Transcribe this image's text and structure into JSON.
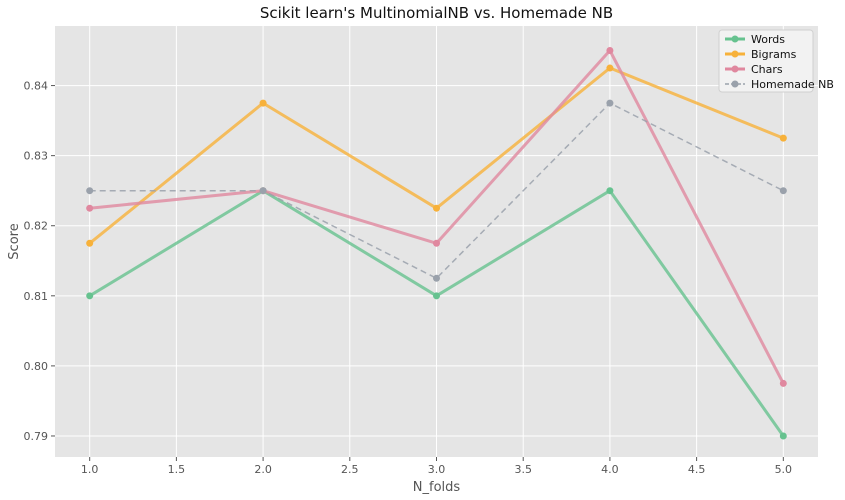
{
  "chart_data": {
    "type": "line",
    "title": "Scikit learn's MultinomialNB vs. Homemade NB",
    "xlabel": "N_folds",
    "ylabel": "Score",
    "x": [
      1.0,
      2.0,
      3.0,
      4.0,
      5.0
    ],
    "xlim": [
      0.8,
      5.2
    ],
    "ylim": [
      0.787,
      0.8485
    ],
    "xticks": [
      1.0,
      1.5,
      2.0,
      2.5,
      3.0,
      3.5,
      4.0,
      4.5,
      5.0
    ],
    "xtick_labels": [
      "1.0",
      "1.5",
      "2.0",
      "2.5",
      "3.0",
      "3.5",
      "4.0",
      "4.5",
      "5.0"
    ],
    "yticks": [
      0.79,
      0.8,
      0.81,
      0.82,
      0.83,
      0.84
    ],
    "ytick_labels": [
      "0.79",
      "0.80",
      "0.81",
      "0.82",
      "0.83",
      "0.84"
    ],
    "grid": true,
    "legend_position": "top-right",
    "series": [
      {
        "name": "Words",
        "values": [
          0.81,
          0.825,
          0.81,
          0.825,
          0.79
        ],
        "color": "#66c28f",
        "style": "solid"
      },
      {
        "name": "Bigrams",
        "values": [
          0.8175,
          0.8375,
          0.8225,
          0.8425,
          0.8325
        ],
        "color": "#f7b13a",
        "style": "solid"
      },
      {
        "name": "Chars",
        "values": [
          0.8225,
          0.825,
          0.8175,
          0.845,
          0.7975
        ],
        "color": "#e0889f",
        "style": "solid"
      },
      {
        "name": "Homemade NB",
        "values": [
          0.825,
          0.825,
          0.8125,
          0.8375,
          0.825
        ],
        "color": "#9aa1ab",
        "style": "dashed"
      }
    ]
  }
}
